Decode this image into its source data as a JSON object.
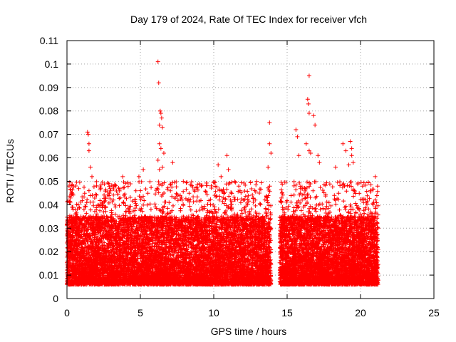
{
  "chart_data": {
    "type": "scatter",
    "title": "Day 179 of 2024, Rate Of TEC Index for receiver vfch",
    "xlabel": "GPS time / hours",
    "ylabel": "ROTI / TECUs",
    "xlim": [
      0,
      25
    ],
    "ylim": [
      0,
      0.11
    ],
    "xticks": [
      0,
      5,
      10,
      15,
      20,
      25
    ],
    "xtick_labels": [
      "0",
      "5",
      "10",
      "15",
      "20",
      "25"
    ],
    "yticks": [
      0,
      0.01,
      0.02,
      0.03,
      0.04,
      0.05,
      0.06,
      0.07,
      0.08,
      0.09,
      0.1,
      0.11
    ],
    "ytick_labels": [
      "0",
      "0.01",
      "0.02",
      "0.03",
      "0.04",
      "0.05",
      "0.06",
      "0.07",
      "0.08",
      "0.09",
      "0.1",
      "0.11"
    ],
    "grid": true,
    "marker": "+",
    "marker_color": "#ff0000",
    "series": [
      {
        "name": "ROTI",
        "color": "#ff0000",
        "data_segments": [
          {
            "t_start": 0.0,
            "t_end": 13.9,
            "typical_min": 0.006,
            "typical_max": 0.035
          },
          {
            "t_start": 14.5,
            "t_end": 21.2,
            "typical_min": 0.006,
            "typical_max": 0.035
          }
        ],
        "peaks": [
          [
            1.4,
            0.071
          ],
          [
            1.45,
            0.07
          ],
          [
            1.5,
            0.066
          ],
          [
            1.5,
            0.063
          ],
          [
            1.6,
            0.056
          ],
          [
            1.7,
            0.052
          ],
          [
            3.8,
            0.052
          ],
          [
            4.9,
            0.052
          ],
          [
            5.2,
            0.055
          ],
          [
            6.2,
            0.101
          ],
          [
            6.25,
            0.092
          ],
          [
            6.35,
            0.08
          ],
          [
            6.4,
            0.079
          ],
          [
            6.45,
            0.077
          ],
          [
            6.3,
            0.074
          ],
          [
            6.5,
            0.073
          ],
          [
            6.3,
            0.066
          ],
          [
            6.4,
            0.064
          ],
          [
            6.6,
            0.062
          ],
          [
            6.2,
            0.059
          ],
          [
            7.2,
            0.058
          ],
          [
            6.5,
            0.056
          ],
          [
            6.3,
            0.055
          ],
          [
            10.3,
            0.057
          ],
          [
            10.9,
            0.061
          ],
          [
            11.0,
            0.055
          ],
          [
            10.5,
            0.052
          ],
          [
            13.8,
            0.075
          ],
          [
            13.8,
            0.066
          ],
          [
            13.9,
            0.062
          ],
          [
            13.7,
            0.056
          ],
          [
            15.6,
            0.072
          ],
          [
            15.7,
            0.069
          ],
          [
            15.8,
            0.061
          ],
          [
            16.5,
            0.095
          ],
          [
            16.4,
            0.085
          ],
          [
            16.45,
            0.083
          ],
          [
            16.5,
            0.079
          ],
          [
            16.8,
            0.078
          ],
          [
            16.9,
            0.074
          ],
          [
            16.3,
            0.066
          ],
          [
            16.5,
            0.063
          ],
          [
            16.6,
            0.062
          ],
          [
            17.1,
            0.061
          ],
          [
            17.2,
            0.058
          ],
          [
            18.8,
            0.066
          ],
          [
            19.0,
            0.063
          ],
          [
            19.3,
            0.067
          ],
          [
            19.4,
            0.064
          ],
          [
            19.4,
            0.061
          ],
          [
            19.5,
            0.058
          ],
          [
            19.2,
            0.057
          ],
          [
            18.3,
            0.056
          ],
          [
            21.0,
            0.052
          ],
          [
            20.9,
            0.041
          ],
          [
            21.0,
            0.039
          ]
        ]
      }
    ]
  }
}
